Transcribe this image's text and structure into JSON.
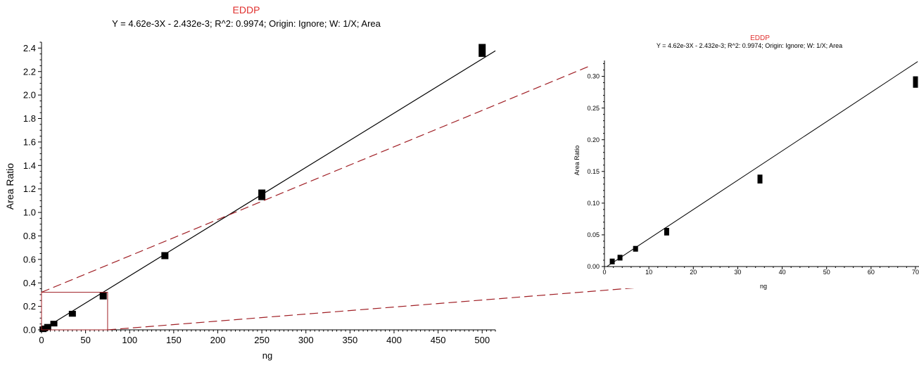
{
  "colors": {
    "title": "#e0312f",
    "axis": "#000000",
    "point": "#000000",
    "fit_line": "#000000",
    "zoom_guide": "#a01f25"
  },
  "chart_data": [
    {
      "type": "scatter",
      "title": "EDDP",
      "subtitle": "Y = 4.62e-3X - 2.432e-3; R^2: 0.9974; Origin: Ignore; W: 1/X; Area",
      "xlabel": "ng",
      "ylabel": "Area Ratio",
      "xlim": [
        0,
        515
      ],
      "ylim": [
        0,
        2.45
      ],
      "x_ticks": [
        0,
        50,
        100,
        150,
        200,
        250,
        300,
        350,
        400,
        450,
        500
      ],
      "x_tick_labels": [
        "0",
        "50",
        "100",
        "150",
        "200",
        "250",
        "300",
        "350",
        "400",
        "450",
        "500"
      ],
      "y_ticks": [
        0,
        0.2,
        0.4,
        0.6,
        0.8,
        1.0,
        1.2,
        1.4,
        1.6,
        1.8,
        2.0,
        2.2,
        2.4
      ],
      "y_tick_labels": [
        "0.0",
        "0.2",
        "0.4",
        "0.6",
        "0.8",
        "1.0",
        "1.2",
        "1.4",
        "1.6",
        "1.8",
        "2.0",
        "2.2",
        "2.4"
      ],
      "points": [
        {
          "x": 1.75,
          "y": 0.005,
          "h": 0.03
        },
        {
          "x": 3.5,
          "y": 0.012,
          "h": 0.03
        },
        {
          "x": 7,
          "y": 0.026,
          "h": 0.03
        },
        {
          "x": 14,
          "y": 0.053,
          "h": 0.04
        },
        {
          "x": 35,
          "y": 0.137,
          "h": 0.05
        },
        {
          "x": 70,
          "y": 0.289,
          "h": 0.06
        },
        {
          "x": 140,
          "y": 0.632,
          "h": 0.06
        },
        {
          "x": 250,
          "y": 1.15,
          "h": 0.09
        },
        {
          "x": 500,
          "y": 2.38,
          "h": 0.11
        }
      ],
      "fit": {
        "slope": 0.00462,
        "intercept": -0.002432,
        "x_range": [
          0,
          515
        ]
      },
      "zoom_region": {
        "xlim": [
          0,
          75
        ],
        "ylim": [
          0,
          0.32
        ]
      },
      "grid": false,
      "legend": "none"
    },
    {
      "type": "scatter",
      "title": "EDDP",
      "subtitle": "Y = 4.62e-3X - 2.432e-3; R^2: 0.9974; Origin: Ignore; W: 1/X; Area",
      "xlabel": "ng",
      "ylabel": "Area Ratio",
      "xlim": [
        0,
        70
      ],
      "ylim": [
        0,
        0.325
      ],
      "x_ticks": [
        0,
        10,
        20,
        30,
        40,
        50,
        60,
        70
      ],
      "x_tick_labels": [
        "0",
        "10",
        "20",
        "30",
        "40",
        "50",
        "60",
        "70"
      ],
      "y_ticks": [
        0,
        0.05,
        0.1,
        0.15,
        0.2,
        0.25,
        0.3
      ],
      "y_tick_labels": [
        "0.00",
        "0.05",
        "0.10",
        "0.15",
        "0.20",
        "0.25",
        "0.30"
      ],
      "points": [
        {
          "x": 1.75,
          "y": 0.008,
          "h": 0.009
        },
        {
          "x": 3.5,
          "y": 0.014,
          "h": 0.009
        },
        {
          "x": 7,
          "y": 0.028,
          "h": 0.009
        },
        {
          "x": 14,
          "y": 0.055,
          "h": 0.012
        },
        {
          "x": 35,
          "y": 0.138,
          "h": 0.014
        },
        {
          "x": 70,
          "y": 0.291,
          "h": 0.018
        }
      ],
      "fit": {
        "slope": 0.00462,
        "intercept": -0.002432,
        "x_range": [
          0,
          70.5
        ]
      },
      "grid": false,
      "legend": "none"
    }
  ]
}
